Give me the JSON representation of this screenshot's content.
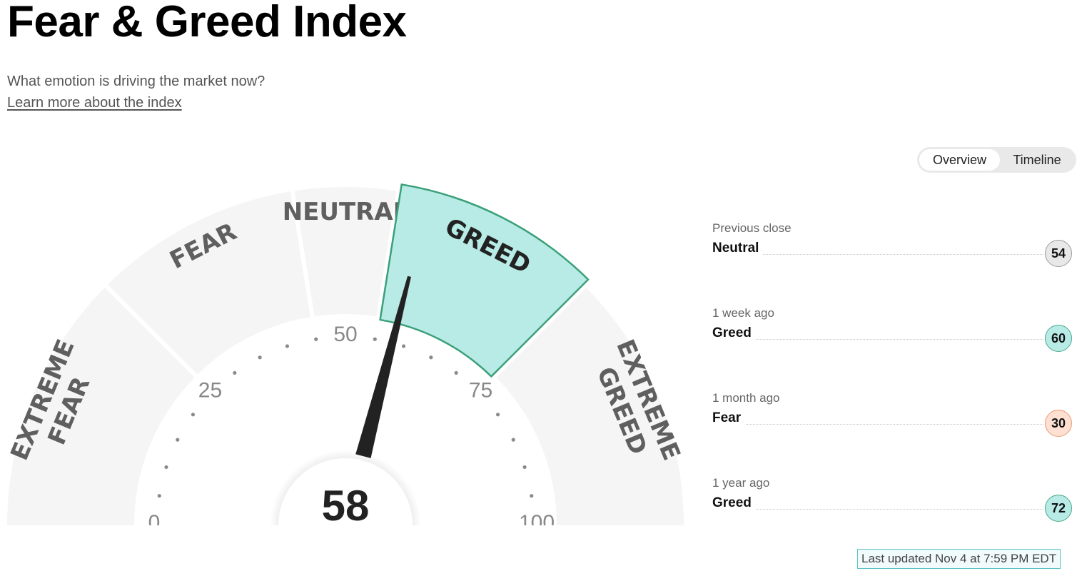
{
  "header": {
    "title": "Fear & Greed Index",
    "subtitle": "What emotion is driving the market now?",
    "learn_link": "Learn more about the index"
  },
  "view_toggle": {
    "options": [
      "Overview",
      "Timeline"
    ],
    "selected": "Overview"
  },
  "gauge": {
    "value": 58,
    "value_display": "58",
    "min": 0,
    "max": 100,
    "active_segment": "GREED",
    "segments": [
      {
        "lines": [
          "EXTREME",
          "FEAR"
        ],
        "from": 0,
        "to": 25
      },
      {
        "lines": [
          "FEAR"
        ],
        "from": 25,
        "to": 45
      },
      {
        "lines": [
          "NEUTRAL"
        ],
        "from": 45,
        "to": 55
      },
      {
        "lines": [
          "GREED"
        ],
        "from": 55,
        "to": 75
      },
      {
        "lines": [
          "EXTREME",
          "GREED"
        ],
        "from": 75,
        "to": 100
      }
    ],
    "ticks": [
      "0",
      "25",
      "50",
      "75",
      "100"
    ],
    "colors": {
      "segment": "#f5f5f5",
      "active_fill": "#b8ebe6",
      "active_stroke": "#3aa078",
      "needle": "#222222",
      "label": "#5f5f5f",
      "active_label": "#222222"
    }
  },
  "history": [
    {
      "period": "Previous close",
      "rating": "Neutral",
      "score": "54",
      "tone": "neutral"
    },
    {
      "period": "1 week ago",
      "rating": "Greed",
      "score": "60",
      "tone": "greed"
    },
    {
      "period": "1 month ago",
      "rating": "Fear",
      "score": "30",
      "tone": "fear"
    },
    {
      "period": "1 year ago",
      "rating": "Greed",
      "score": "72",
      "tone": "greed"
    }
  ],
  "last_updated": "Last updated Nov 4 at 7:59 PM EDT"
}
